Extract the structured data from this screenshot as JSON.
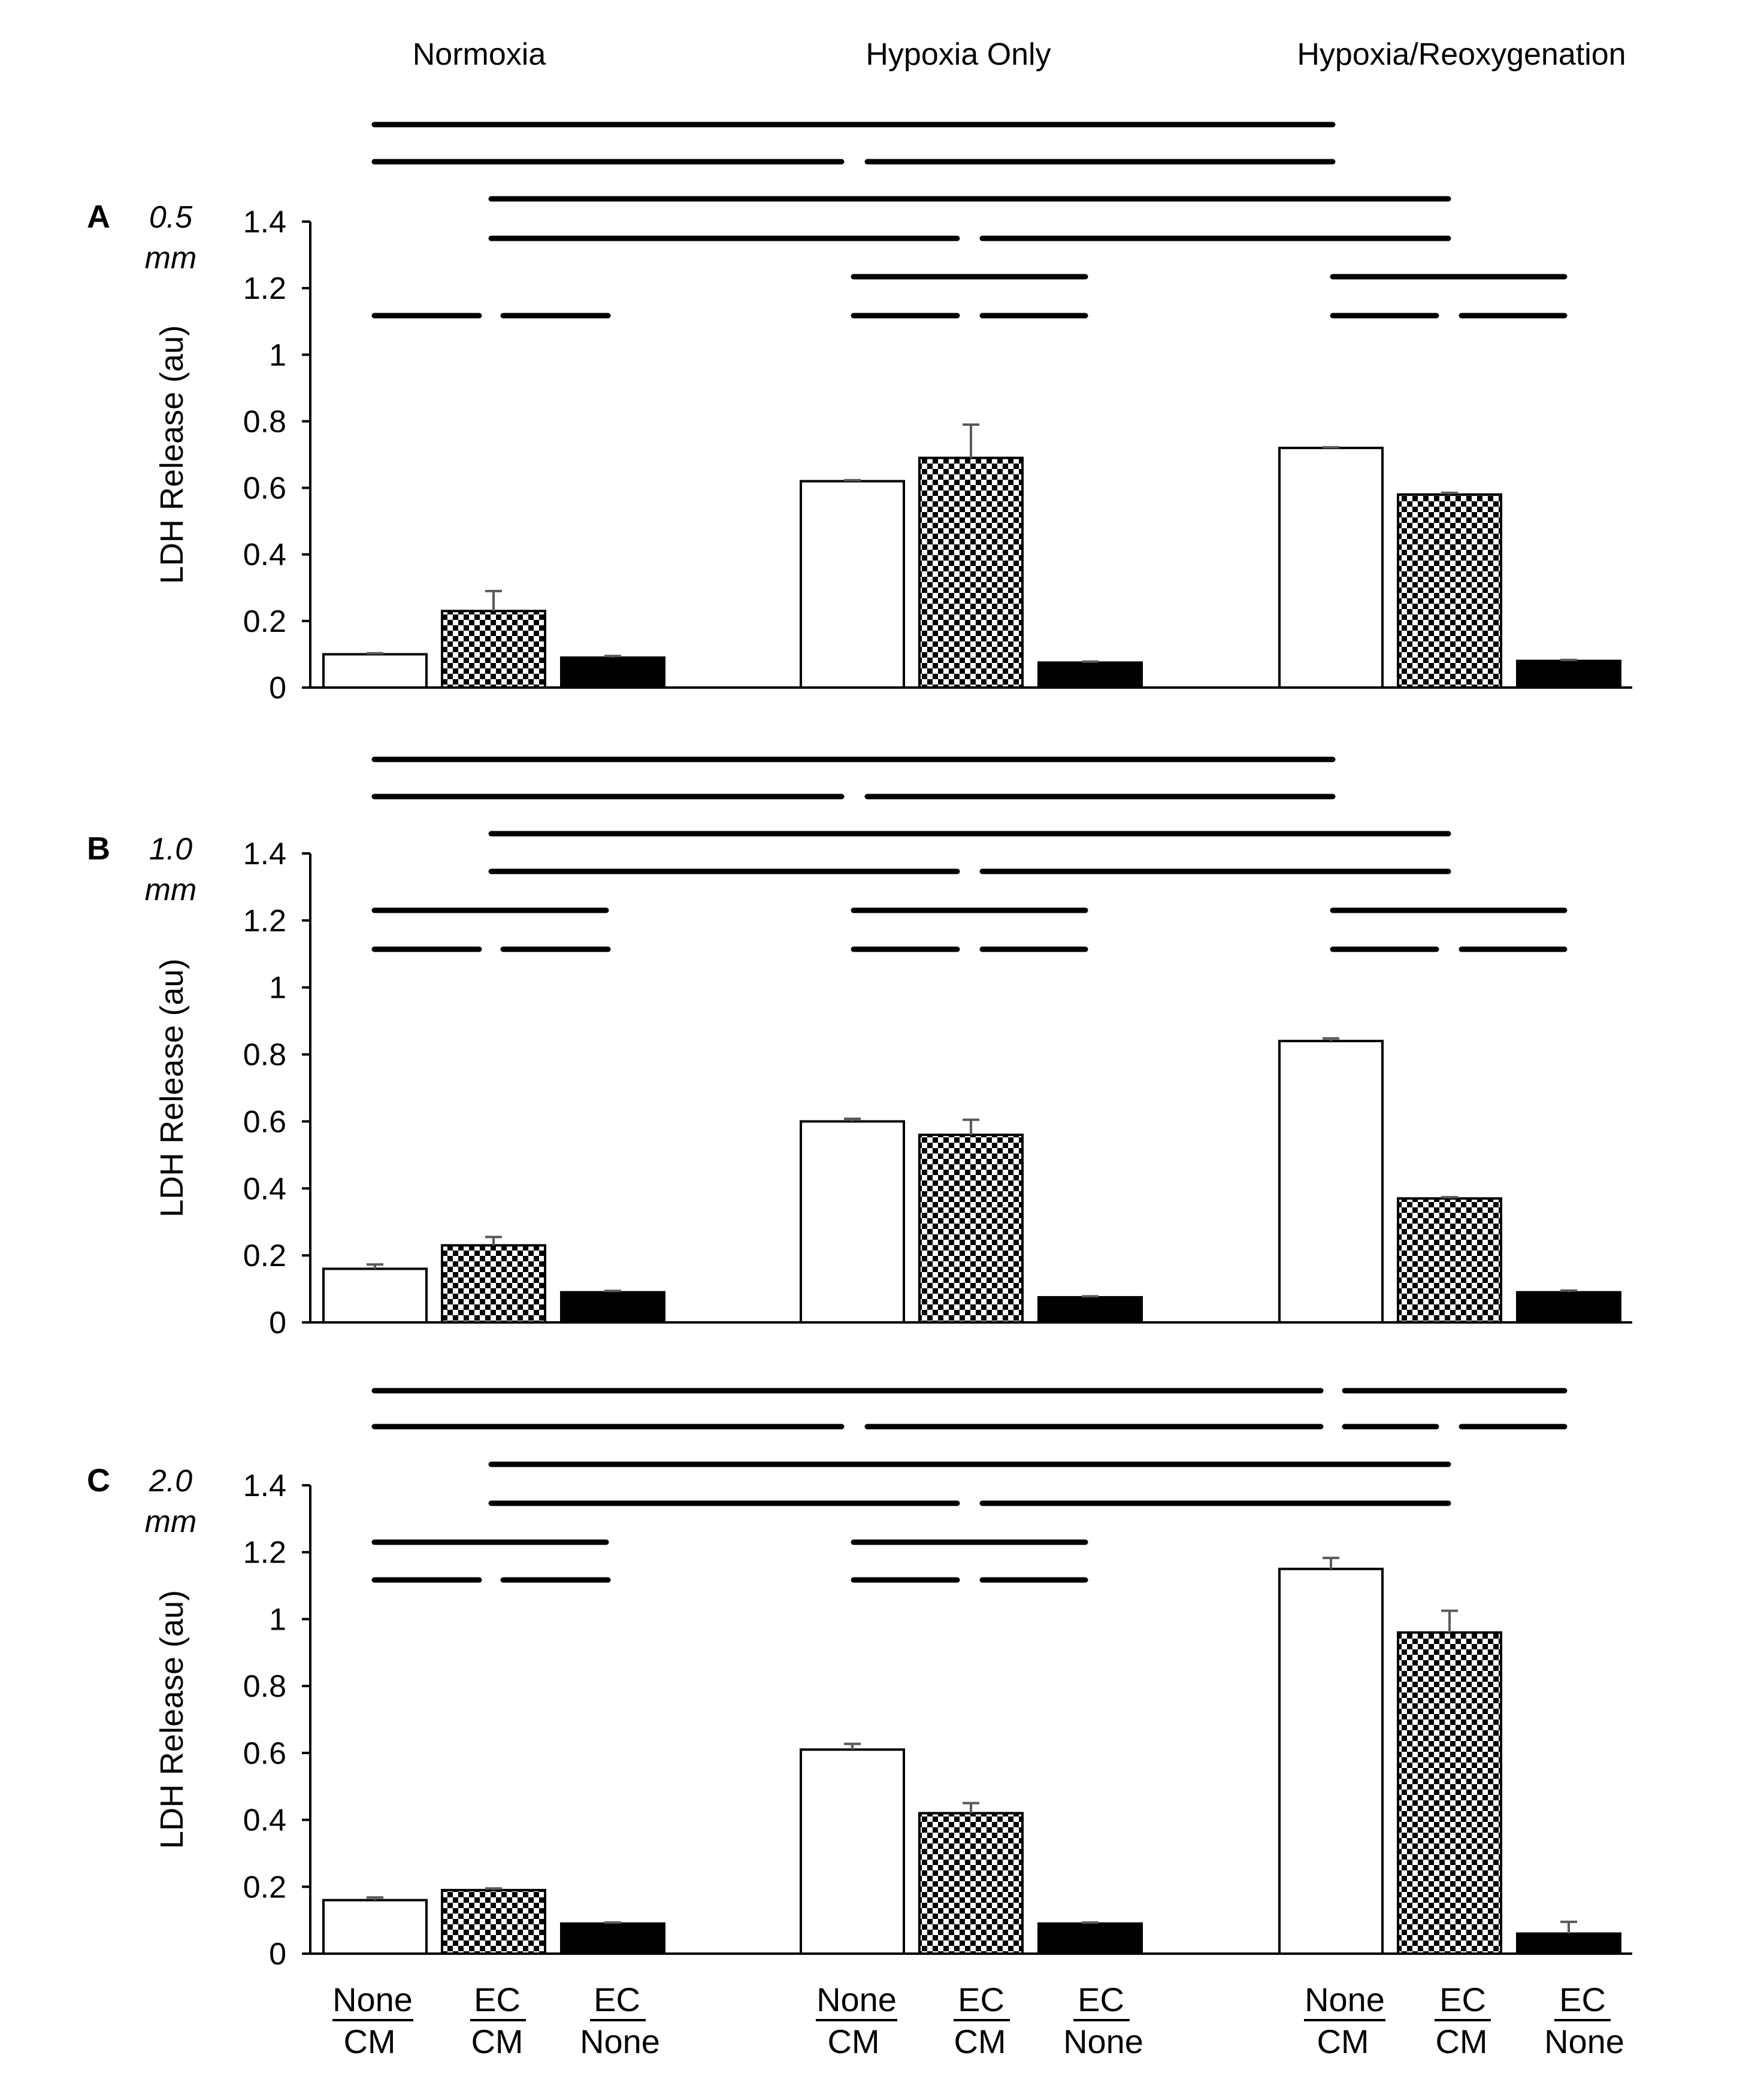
{
  "conditions": [
    "Normoxia",
    "Hypoxia Only",
    "Hypoxia/Reoxygenation"
  ],
  "treatments": [
    {
      "top": "None",
      "bottom": "CM",
      "fill": "white"
    },
    {
      "top": "EC",
      "bottom": "CM",
      "fill": "checker"
    },
    {
      "top": "EC",
      "bottom": "None",
      "fill": "black"
    }
  ],
  "colors": {
    "bar_outline": "#000000",
    "black_fill": "#000000",
    "white_fill": "#ffffff",
    "error_bar": "#595959"
  },
  "chart_data": [
    {
      "type": "bar",
      "panel_label": "A",
      "thickness_label": "0.5",
      "thickness_unit": "mm",
      "ylabel": "LDH Release (au)",
      "ylim": [
        0,
        1.4
      ],
      "yticks": [
        "0",
        "0.2",
        "0.4",
        "0.6",
        "0.8",
        "1",
        "1.2",
        "1.4"
      ],
      "categories": [
        "Normoxia",
        "Hypoxia Only",
        "Hypoxia/Reoxygenation"
      ],
      "series": [
        {
          "name": "None CM",
          "values": [
            0.1,
            0.62,
            0.72
          ],
          "errors": [
            0.003,
            0.003,
            0.002
          ]
        },
        {
          "name": "EC CM",
          "values": [
            0.23,
            0.69,
            0.58
          ],
          "errors": [
            0.06,
            0.1,
            0.005
          ]
        },
        {
          "name": "EC None",
          "values": [
            0.09,
            0.075,
            0.08
          ],
          "errors": [
            0.005,
            0.003,
            0.003
          ]
        }
      ]
    },
    {
      "type": "bar",
      "panel_label": "B",
      "thickness_label": "1.0",
      "thickness_unit": "mm",
      "ylabel": "LDH Release (au)",
      "ylim": [
        0,
        1.4
      ],
      "yticks": [
        "0",
        "0.2",
        "0.4",
        "0.6",
        "0.8",
        "1",
        "1.2",
        "1.4"
      ],
      "categories": [
        "Normoxia",
        "Hypoxia Only",
        "Hypoxia/Reoxygenation"
      ],
      "series": [
        {
          "name": "None CM",
          "values": [
            0.16,
            0.6,
            0.84
          ],
          "errors": [
            0.013,
            0.008,
            0.008
          ]
        },
        {
          "name": "EC CM",
          "values": [
            0.23,
            0.56,
            0.37
          ],
          "errors": [
            0.025,
            0.045,
            0.004
          ]
        },
        {
          "name": "EC None",
          "values": [
            0.09,
            0.075,
            0.09
          ],
          "errors": [
            0.004,
            0.003,
            0.005
          ]
        }
      ]
    },
    {
      "type": "bar",
      "panel_label": "C",
      "thickness_label": "2.0",
      "thickness_unit": "mm",
      "ylabel": "LDH Release (au)",
      "ylim": [
        0,
        1.4
      ],
      "yticks": [
        "0",
        "0.2",
        "0.4",
        "0.6",
        "0.8",
        "1",
        "1.2",
        "1.4"
      ],
      "categories": [
        "Normoxia",
        "Hypoxia Only",
        "Hypoxia/Reoxygenation"
      ],
      "series": [
        {
          "name": "None CM",
          "values": [
            0.16,
            0.61,
            1.15
          ],
          "errors": [
            0.008,
            0.017,
            0.033
          ]
        },
        {
          "name": "EC CM",
          "values": [
            0.19,
            0.42,
            0.96
          ],
          "errors": [
            0.005,
            0.03,
            0.065
          ]
        },
        {
          "name": "EC None",
          "values": [
            0.09,
            0.09,
            0.06
          ],
          "errors": [
            0.003,
            0.003,
            0.035
          ]
        }
      ]
    }
  ]
}
